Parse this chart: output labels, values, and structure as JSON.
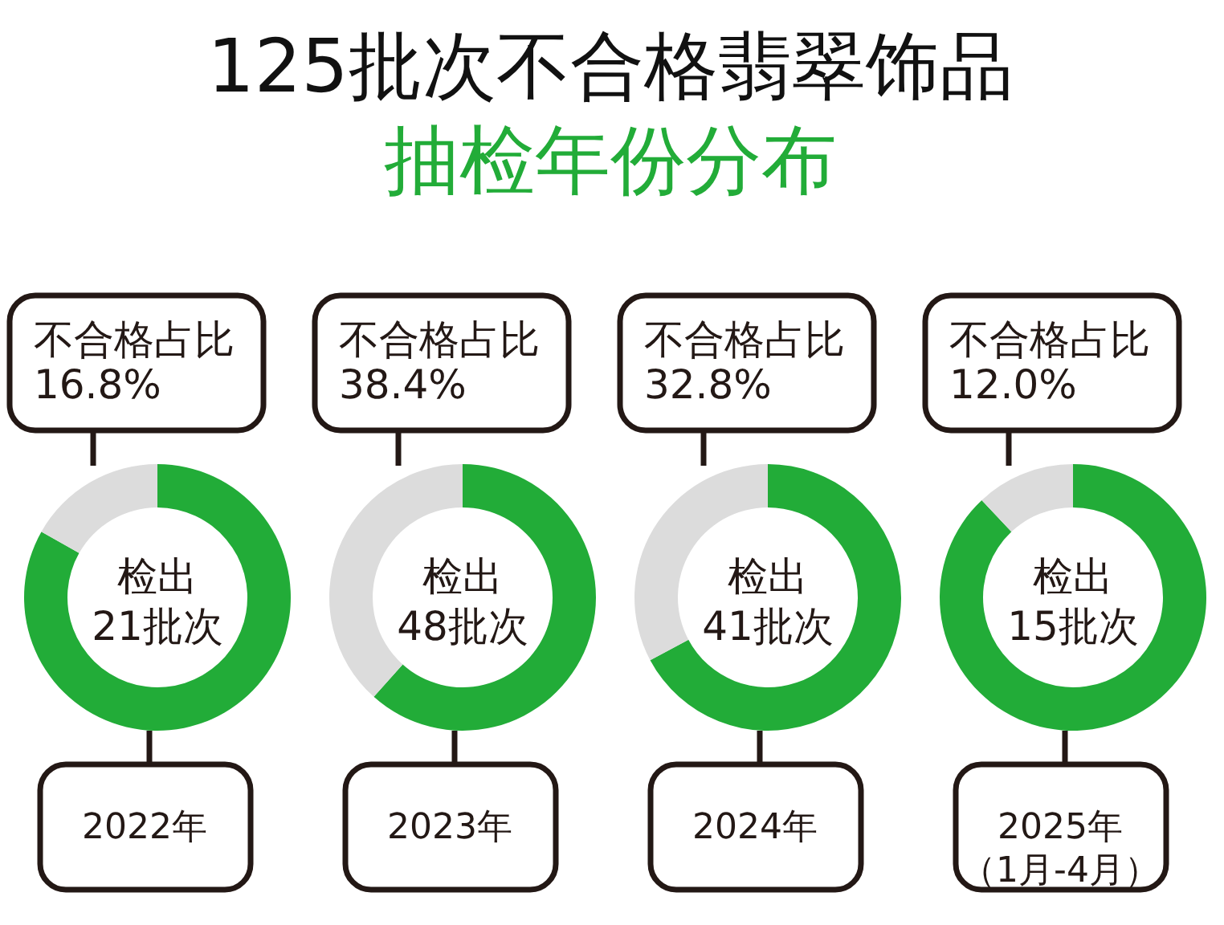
{
  "chart_data": [
    {
      "type": "donut",
      "title": "125批次不合格翡翠饰品",
      "subtitle": "抽检年份分布",
      "categories": [
        null,
        "不合格占比"
      ],
      "values": [
        83.2,
        16.8
      ],
      "colors": [
        "#22ac38",
        "#dcdcdc"
      ],
      "value_labels": [
        null,
        "16.8%"
      ],
      "annotations": [
        "检出",
        "21批次"
      ],
      "xlabel": "2022年"
    },
    {
      "type": "donut",
      "categories": [
        null,
        "不合格占比"
      ],
      "values": [
        61.6,
        38.4
      ],
      "colors": [
        "#22ac38",
        "#dcdcdc"
      ],
      "value_labels": [
        null,
        "38.4%"
      ],
      "annotations": [
        "检出",
        "48批次"
      ],
      "xlabel": "2023年"
    },
    {
      "type": "donut",
      "categories": [
        null,
        "不合格占比"
      ],
      "values": [
        67.2,
        32.8
      ],
      "colors": [
        "#22ac38",
        "#dcdcdc"
      ],
      "value_labels": [
        null,
        "32.8%"
      ],
      "annotations": [
        "检出",
        "41批次"
      ],
      "xlabel": "2024年"
    },
    {
      "type": "donut",
      "categories": [
        null,
        "不合格占比"
      ],
      "values": [
        88.0,
        12.0
      ],
      "colors": [
        "#22ac38",
        "#dcdcdc"
      ],
      "value_labels": [
        null,
        "12.0%"
      ],
      "annotations": [
        "检出",
        "15批次"
      ],
      "xlabel": "2025年（1月-4月）"
    }
  ]
}
